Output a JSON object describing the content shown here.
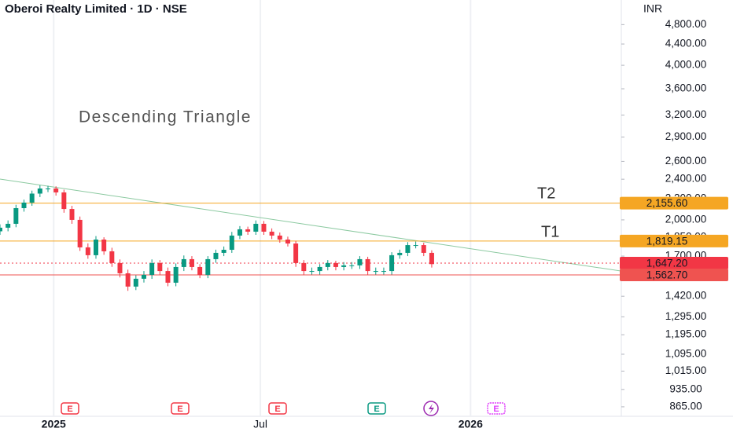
{
  "chart_data": {
    "type": "candlestick",
    "title": "Oberoi Realty Limited · 1D · NSE",
    "currency": "INR",
    "log_scale": true,
    "grid": "x",
    "up_color": "#089981",
    "down_color": "#f23645",
    "xlim": [
      -47,
      497
    ],
    "xticks": [
      {
        "value": 0,
        "label": "2025"
      },
      {
        "value": 181,
        "label": "Jul"
      },
      {
        "value": 365,
        "label": "2026"
      }
    ],
    "ylim": [
      829,
      5360
    ],
    "yticks": [
      {
        "value": 865,
        "label": "865.00"
      },
      {
        "value": 935,
        "label": "935.00"
      },
      {
        "value": 1015,
        "label": "1,015.00"
      },
      {
        "value": 1095,
        "label": "1,095.00"
      },
      {
        "value": 1195,
        "label": "1,195.00"
      },
      {
        "value": 1295,
        "label": "1,295.00"
      },
      {
        "value": 1420,
        "label": "1,420.00"
      },
      {
        "value": 1700,
        "label": "1,700.00"
      },
      {
        "value": 1850,
        "label": "1,850.00"
      },
      {
        "value": 2000,
        "label": "2,000.00"
      },
      {
        "value": 2200,
        "label": "2,200.00"
      },
      {
        "value": 2400,
        "label": "2,400.00"
      },
      {
        "value": 2600,
        "label": "2,600.00"
      },
      {
        "value": 2900,
        "label": "2,900.00"
      },
      {
        "value": 3200,
        "label": "3,200.00"
      },
      {
        "value": 3600,
        "label": "3,600.00"
      },
      {
        "value": 4000,
        "label": "4,000.00"
      },
      {
        "value": 4400,
        "label": "4,400.00"
      },
      {
        "value": 4800,
        "label": "4,800.00"
      }
    ],
    "x": [
      -47,
      -40,
      -33,
      -26,
      -19,
      -12,
      -5,
      2,
      9,
      16,
      23,
      30,
      37,
      44,
      51,
      58,
      65,
      72,
      79,
      86,
      93,
      100,
      107,
      114,
      121,
      128,
      135,
      142,
      149,
      156,
      163,
      170,
      177,
      184,
      191,
      198,
      205,
      212,
      219,
      226,
      233,
      240,
      247,
      254,
      261,
      268,
      275,
      282,
      289,
      296,
      303,
      310,
      317,
      324,
      331
    ],
    "open": [
      1900,
      1931,
      1965,
      2108,
      2161,
      2250,
      2302,
      2302,
      2262,
      2100,
      2000,
      1768,
      1707,
      1831,
      1737,
      1648,
      1574,
      1483,
      1536,
      1563,
      1648,
      1590,
      1509,
      1619,
      1677,
      1619,
      1563,
      1677,
      1725,
      1749,
      1864,
      1917,
      1897,
      1965,
      1897,
      1864,
      1831,
      1799,
      1648,
      1590,
      1590,
      1619,
      1648,
      1619,
      1631,
      1631,
      1677,
      1590,
      1590,
      1590,
      1707,
      1725,
      1786,
      1786,
      1725
    ],
    "high": [
      1960,
      1995,
      2140,
      2190,
      2280,
      2335,
      2330,
      2325,
      2290,
      2130,
      2030,
      1800,
      1860,
      1850,
      1765,
      1675,
      1600,
      1560,
      1590,
      1675,
      1670,
      1615,
      1645,
      1705,
      1700,
      1640,
      1700,
      1750,
      1775,
      1895,
      1945,
      1940,
      1995,
      1990,
      1925,
      1890,
      1855,
      1820,
      1670,
      1615,
      1640,
      1670,
      1665,
      1655,
      1655,
      1700,
      1695,
      1615,
      1615,
      1730,
      1750,
      1810,
      1815,
      1805,
      1745
    ],
    "low": [
      1870,
      1900,
      1935,
      2075,
      2130,
      2215,
      2265,
      2230,
      2065,
      1965,
      1740,
      1680,
      1680,
      1710,
      1620,
      1545,
      1455,
      1460,
      1510,
      1535,
      1565,
      1485,
      1485,
      1590,
      1595,
      1540,
      1540,
      1650,
      1700,
      1725,
      1835,
      1870,
      1870,
      1870,
      1835,
      1805,
      1775,
      1620,
      1565,
      1565,
      1565,
      1595,
      1595,
      1595,
      1605,
      1605,
      1565,
      1565,
      1565,
      1565,
      1680,
      1700,
      1760,
      1700,
      1615
    ],
    "close": [
      1931,
      1965,
      2108,
      2161,
      2250,
      2302,
      2302,
      2262,
      2100,
      2000,
      1768,
      1707,
      1831,
      1737,
      1648,
      1574,
      1483,
      1536,
      1563,
      1648,
      1590,
      1509,
      1619,
      1677,
      1619,
      1563,
      1677,
      1725,
      1749,
      1864,
      1917,
      1897,
      1965,
      1897,
      1864,
      1831,
      1799,
      1648,
      1590,
      1590,
      1619,
      1648,
      1619,
      1631,
      1631,
      1677,
      1590,
      1590,
      1590,
      1707,
      1725,
      1786,
      1786,
      1725,
      1640
    ],
    "levels": [
      {
        "value": 2155.6,
        "label": "2,155.60",
        "color": "#f5a623",
        "style": "solid"
      },
      {
        "value": 1819.15,
        "label": "1,819.15",
        "color": "#f5a623",
        "style": "solid"
      },
      {
        "value": 1647.2,
        "label": "1,647.20",
        "color": "#f23645",
        "style": "dotted"
      },
      {
        "value": 1562.7,
        "label": "1,562.70",
        "color": "#ef5350",
        "style": "solid"
      }
    ],
    "trendline": {
      "x": [
        -47,
        497
      ],
      "values": [
        2401,
        1590
      ],
      "color": "#8bc9a0"
    },
    "annotations": [
      "Descending Triangle",
      "T2",
      "T1"
    ],
    "events": [
      "E",
      "E",
      "E",
      "E",
      "E"
    ]
  }
}
